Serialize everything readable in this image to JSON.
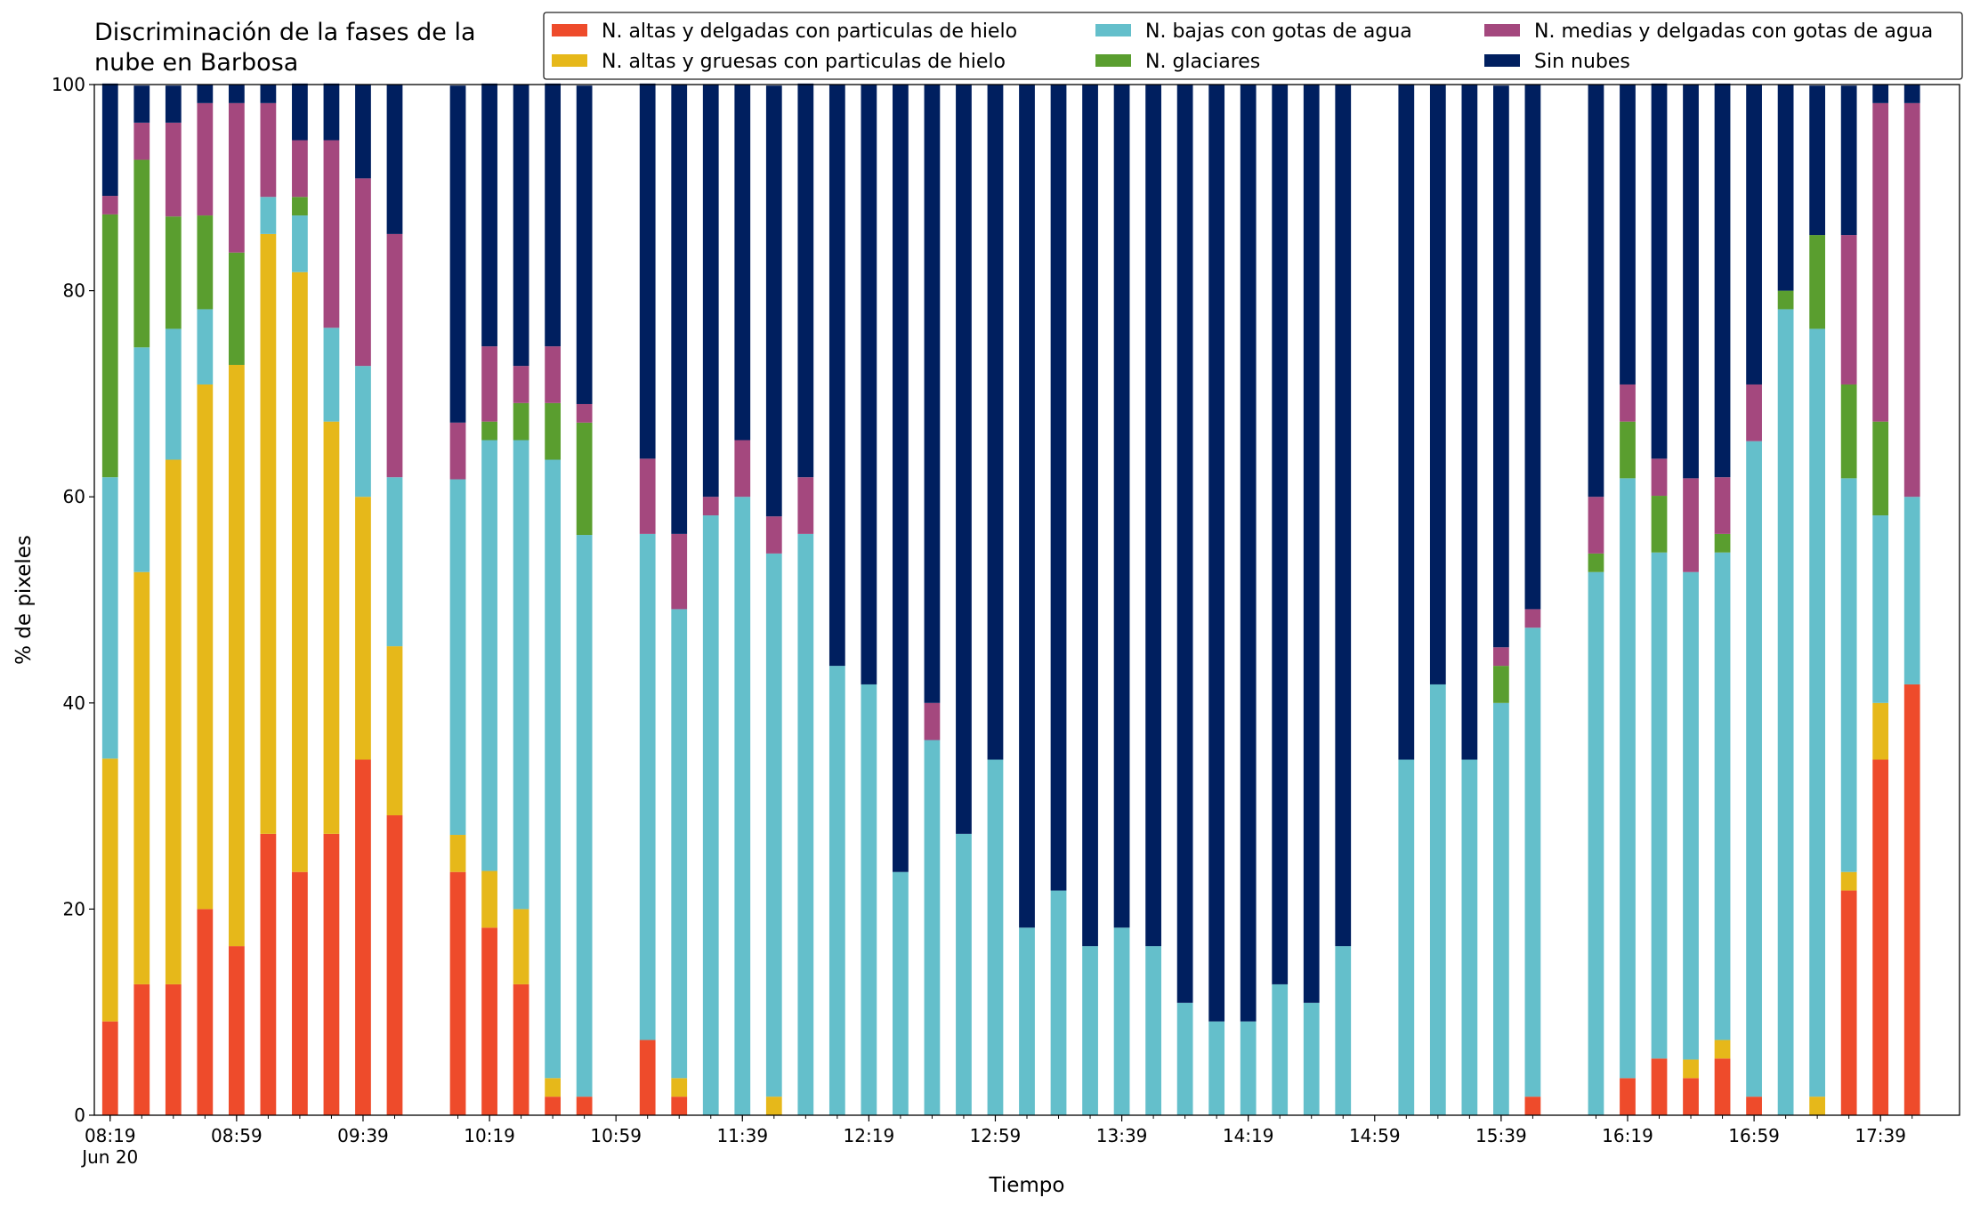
{
  "chart_data": {
    "type": "stacked_bar",
    "title": "Discriminación de la fases de la\nnube en Barbosa",
    "xlabel": "Tiempo",
    "ylabel": "% de pixeles",
    "x": [
      "08:19",
      "08:29",
      "08:39",
      "08:49",
      "08:59",
      "09:09",
      "09:19",
      "09:29",
      "09:39",
      "09:49",
      "10:09",
      "10:19",
      "10:29",
      "10:39",
      "10:49",
      "11:09",
      "11:19",
      "11:29",
      "11:39",
      "11:49",
      "11:59",
      "12:09",
      "12:19",
      "12:29",
      "12:39",
      "12:49",
      "12:59",
      "13:09",
      "13:19",
      "13:29",
      "13:39",
      "13:49",
      "13:59",
      "14:09",
      "14:19",
      "14:29",
      "14:39",
      "14:49",
      "15:09",
      "15:19",
      "15:29",
      "15:39",
      "15:49",
      "16:09",
      "16:19",
      "16:29",
      "16:39",
      "16:49",
      "16:59",
      "17:09",
      "17:19",
      "17:29",
      "17:39",
      "17:49"
    ],
    "xlim": [
      "08:14",
      "18:04"
    ],
    "xticks": [
      "08:19",
      "08:59",
      "09:39",
      "10:19",
      "10:59",
      "11:39",
      "12:19",
      "12:59",
      "13:39",
      "14:19",
      "14:59",
      "15:39",
      "16:19",
      "16:59",
      "17:39"
    ],
    "xtick_date": "Jun 20",
    "ylim": [
      0,
      100
    ],
    "yticks": [
      0,
      20,
      40,
      60,
      80,
      100
    ],
    "legend": "top-right",
    "series": [
      {
        "name": "N. altas y delgadas con particulas de hielo",
        "color": "#ee4b2b",
        "values": [
          9.1,
          12.7,
          12.7,
          20,
          16.4,
          27.3,
          23.6,
          27.3,
          34.5,
          29.1,
          23.6,
          18.2,
          12.7,
          1.8,
          1.8,
          7.3,
          1.8,
          0,
          0,
          0,
          0,
          0,
          0,
          0,
          0,
          0,
          0,
          0,
          0,
          0,
          0,
          0,
          0,
          0,
          0,
          0,
          0,
          0,
          0,
          0,
          0,
          0,
          1.8,
          0,
          3.6,
          5.5,
          3.6,
          5.5,
          1.8,
          0,
          0,
          21.8,
          34.5,
          41.8
        ]
      },
      {
        "name": "N. altas y gruesas con particulas de hielo",
        "color": "#e6b81a",
        "values": [
          25.5,
          40,
          50.9,
          50.9,
          56.4,
          58.2,
          58.2,
          40,
          25.5,
          16.4,
          3.6,
          5.5,
          7.3,
          1.8,
          0,
          0,
          1.8,
          0,
          0,
          1.8,
          0,
          0,
          0,
          0,
          0,
          0,
          0,
          0,
          0,
          0,
          0,
          0,
          0,
          0,
          0,
          0,
          0,
          0,
          0,
          0,
          0,
          0,
          0,
          0,
          0,
          0,
          1.8,
          1.8,
          0,
          0,
          1.8,
          1.8,
          5.5,
          0
        ]
      },
      {
        "name": "N. bajas con gotas de agua",
        "color": "#64bfcb",
        "values": [
          27.3,
          21.8,
          12.7,
          7.3,
          0,
          3.6,
          5.5,
          9.1,
          12.7,
          16.4,
          34.5,
          41.8,
          45.5,
          60,
          54.5,
          49.1,
          45.5,
          58.2,
          60,
          52.7,
          56.4,
          43.6,
          41.8,
          23.6,
          36.4,
          27.3,
          34.5,
          18.2,
          21.8,
          16.4,
          18.2,
          16.4,
          10.9,
          9.1,
          9.1,
          12.7,
          10.9,
          16.4,
          34.5,
          41.8,
          34.5,
          40,
          45.5,
          52.7,
          58.2,
          49.1,
          47.3,
          47.3,
          63.6,
          78.2,
          74.5,
          38.2,
          18.2,
          18.2
        ]
      },
      {
        "name": "N. glaciares",
        "color": "#5a9e2f",
        "values": [
          25.5,
          18.2,
          10.9,
          9.1,
          10.9,
          0,
          1.8,
          0,
          0,
          0,
          0,
          1.8,
          3.6,
          5.5,
          10.9,
          0,
          0,
          0,
          0,
          0,
          0,
          0,
          0,
          0,
          0,
          0,
          0,
          0,
          0,
          0,
          0,
          0,
          0,
          0,
          0,
          0,
          0,
          0,
          0,
          0,
          0,
          3.6,
          0,
          1.8,
          5.5,
          5.5,
          0,
          1.8,
          0,
          1.8,
          9.1,
          9.1,
          9.1,
          0
        ]
      },
      {
        "name": "N. medias y delgadas con gotas de agua",
        "color": "#a4487e",
        "values": [
          1.8,
          3.6,
          9.1,
          10.9,
          14.5,
          9.1,
          5.5,
          18.2,
          18.2,
          23.6,
          5.5,
          7.3,
          3.6,
          5.5,
          1.8,
          7.3,
          7.3,
          1.8,
          5.5,
          3.6,
          5.5,
          0,
          0,
          0,
          3.6,
          0,
          0,
          0,
          0,
          0,
          0,
          0,
          0,
          0,
          0,
          0,
          0,
          0,
          0,
          0,
          0,
          1.8,
          1.8,
          5.5,
          3.6,
          3.6,
          9.1,
          5.5,
          5.5,
          0,
          0,
          14.5,
          30.9,
          38.2
        ]
      },
      {
        "name": "Sin nubes",
        "color": "#001f5f",
        "values": [
          10.9,
          3.6,
          3.6,
          1.8,
          1.8,
          1.8,
          5.5,
          5.5,
          9.1,
          14.5,
          32.7,
          25.5,
          27.3,
          25.5,
          30.9,
          36.4,
          43.6,
          40,
          34.5,
          41.8,
          38.2,
          56.4,
          58.2,
          76.4,
          60,
          72.7,
          65.5,
          81.8,
          78.2,
          83.6,
          81.8,
          83.6,
          89.1,
          90.9,
          90.9,
          87.3,
          89.1,
          83.6,
          65.5,
          58.2,
          65.5,
          54.5,
          50.9,
          40,
          29.1,
          36.4,
          38.2,
          38.2,
          29.1,
          20,
          14.5,
          14.5,
          1.8,
          1.8
        ]
      }
    ]
  }
}
